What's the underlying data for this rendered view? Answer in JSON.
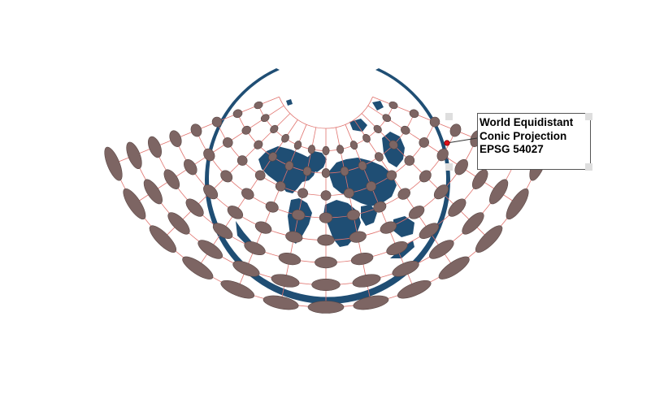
{
  "annotation": {
    "lines": [
      "World Equidistant",
      "Conic Projection",
      "EPSG 54027"
    ]
  },
  "colors": {
    "ocean_ring": "#1f4e74",
    "land": "#1f4e74",
    "graticule": "#e0736e",
    "indicatrix": "#7d6563",
    "indicatrix_stroke": "#5a4644",
    "anchor_dot": "#e0101a"
  }
}
